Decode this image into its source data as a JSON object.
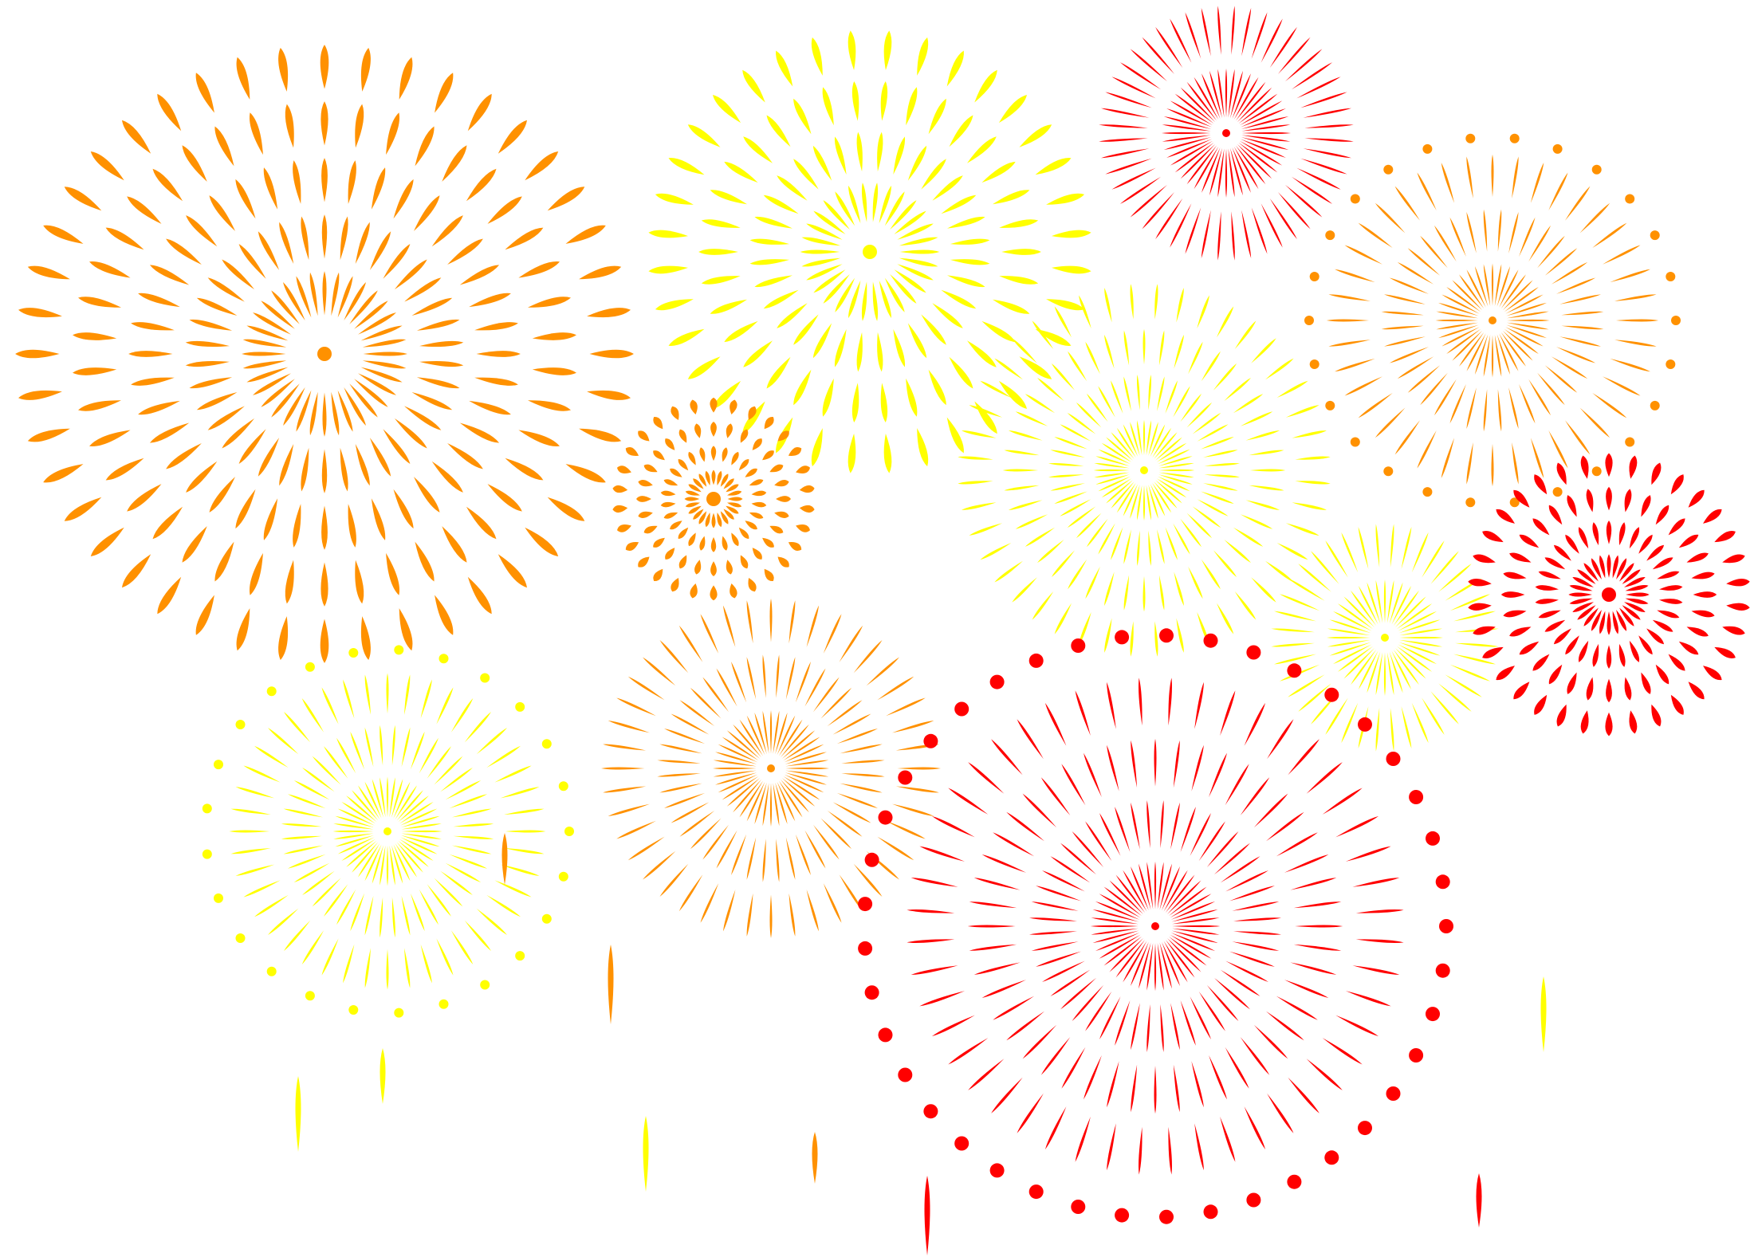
{
  "image": {
    "subject": "fireworks",
    "background": "#ffffff"
  },
  "palette": {
    "orange": "#ff9100",
    "yellow": "#ffff00",
    "red": "#ff0000"
  },
  "bursts": [
    {
      "id": "orange-large",
      "color": "orange",
      "style": "petal-rings",
      "rays": 36,
      "rings": 5,
      "dots": false
    },
    {
      "id": "yellow-large",
      "color": "yellow",
      "style": "petal-rings",
      "rays": 30,
      "rings": 4,
      "dots": false
    },
    {
      "id": "red-small",
      "color": "red",
      "style": "needle",
      "rays": 48,
      "rings": 2,
      "dots": false
    },
    {
      "id": "orange-dotted",
      "color": "orange",
      "style": "needle",
      "rays": 40,
      "rings": 3,
      "dots": true
    },
    {
      "id": "orange-small",
      "color": "orange",
      "style": "petal-rings",
      "rays": 24,
      "rings": 4,
      "dots": false
    },
    {
      "id": "yellow-center",
      "color": "yellow",
      "style": "needle",
      "rays": 44,
      "rings": 4,
      "dots": false
    },
    {
      "id": "yellow-right",
      "color": "yellow",
      "style": "needle",
      "rays": 40,
      "rings": 2,
      "dots": false
    },
    {
      "id": "red-right",
      "color": "red",
      "style": "petal-rings",
      "rays": 28,
      "rings": 4,
      "dots": false
    },
    {
      "id": "yellow-dotted",
      "color": "yellow",
      "style": "needle",
      "rays": 44,
      "rings": 3,
      "dots": true
    },
    {
      "id": "orange-mid",
      "color": "orange",
      "style": "needle",
      "rays": 44,
      "rings": 3,
      "dots": false
    },
    {
      "id": "red-large-dotted",
      "color": "red",
      "style": "needle",
      "rays": 48,
      "rings": 4,
      "dots": true
    }
  ],
  "falling_sparks": [
    {
      "color": "yellow"
    },
    {
      "color": "yellow"
    },
    {
      "color": "yellow"
    },
    {
      "color": "orange"
    },
    {
      "color": "orange"
    },
    {
      "color": "orange"
    },
    {
      "color": "red"
    },
    {
      "color": "red"
    },
    {
      "color": "yellow"
    }
  ]
}
